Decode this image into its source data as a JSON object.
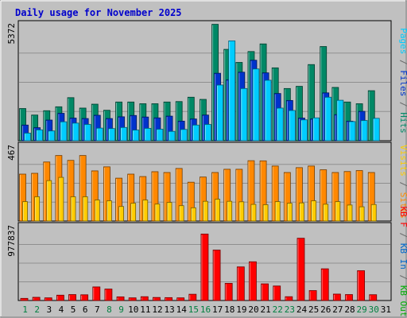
{
  "chart_data": {
    "type": "bar",
    "title": "Daily usage for November 2025",
    "categories": [
      "1",
      "2",
      "3",
      "4",
      "5",
      "6",
      "7",
      "8",
      "9",
      "10",
      "11",
      "12",
      "13",
      "14",
      "15",
      "16",
      "17",
      "18",
      "19",
      "20",
      "21",
      "22",
      "23",
      "24",
      "25",
      "26",
      "27",
      "28",
      "29",
      "30",
      "31"
    ],
    "weekend_days": [
      1,
      2,
      8,
      9,
      15,
      16,
      22,
      23,
      29,
      30
    ],
    "panels": [
      {
        "name": "hits-files-pages",
        "max_label": "5372",
        "ymax": 5372,
        "side_label": [
          {
            "text": "Pages",
            "color": "#00ccff"
          },
          {
            "text": " / ",
            "color": "#666666"
          },
          {
            "text": "Files",
            "color": "#0033cc"
          },
          {
            "text": " / ",
            "color": "#666666"
          },
          {
            "text": "Hits",
            "color": "#008866"
          }
        ],
        "series": [
          {
            "name": "Hits",
            "color": "#008866",
            "values": [
              1480,
              1180,
              1380,
              1560,
              1980,
              1500,
              1680,
              1400,
              1780,
              1780,
              1700,
              1700,
              1780,
              1800,
              2000,
              1900,
              5350,
              4200,
              3600,
              4100,
              4450,
              3350,
              2400,
              2500,
              3500,
              4330,
              2450,
              1780,
              1700,
              2300,
              0
            ]
          },
          {
            "name": "Files",
            "color": "#0033cc",
            "values": [
              720,
              600,
              950,
              1260,
              1040,
              1020,
              1170,
              1020,
              1100,
              1160,
              1090,
              1050,
              1130,
              900,
              1000,
              1180,
              3100,
              2800,
              3150,
              3700,
              3120,
              2170,
              1850,
              1040,
              1000,
              2200,
              1200,
              900,
              1350,
              0,
              0
            ]
          },
          {
            "name": "Pages",
            "color": "#00ccff",
            "values": [
              350,
              500,
              450,
              870,
              810,
              750,
              580,
              560,
              610,
              490,
              570,
              530,
              430,
              520,
              720,
              750,
              2560,
              4590,
              2400,
              3300,
              2780,
              1500,
              1390,
              960,
              1050,
              2000,
              1860,
              880,
              930,
              1030,
              0
            ]
          }
        ]
      },
      {
        "name": "visits-sites",
        "max_label": "467",
        "ymax": 467,
        "side_label": [
          {
            "text": "Visits",
            "color": "#ffcc00"
          },
          {
            "text": " / ",
            "color": "#666666"
          },
          {
            "text": "Sites",
            "color": "#ff8800"
          }
        ],
        "series": [
          {
            "name": "Sites",
            "color": "#ff8800",
            "values": [
              290,
              295,
              365,
              405,
              375,
              405,
              310,
              335,
              265,
              290,
              275,
              305,
              300,
              325,
              240,
              272,
              300,
              320,
              320,
              373,
              372,
              340,
              300,
              330,
              340,
              317,
              300,
              306,
              312,
              300,
              0
            ]
          },
          {
            "name": "Visits",
            "color": "#ffcc00",
            "values": [
              120,
              150,
              250,
              270,
              150,
              150,
              130,
              125,
              90,
              110,
              130,
              105,
              115,
              95,
              82,
              122,
              135,
              122,
              119,
              103,
              101,
              120,
              110,
              112,
              125,
              104,
              120,
              99,
              88,
              102,
              0
            ]
          }
        ]
      },
      {
        "name": "kb",
        "max_label": "977837",
        "ymax": 977837,
        "side_label": [
          {
            "text": "KB F",
            "color": "#ff0000"
          },
          {
            "text": " / ",
            "color": "#666666"
          },
          {
            "text": "KB In",
            "color": "#0066cc"
          },
          {
            "text": " / ",
            "color": "#666666"
          },
          {
            "text": "KB Out",
            "color": "#00aa00"
          }
        ],
        "series": [
          {
            "name": "KB F",
            "color": "#ff0000",
            "values": [
              28000,
              42000,
              35000,
              70000,
              78000,
              75000,
              178000,
              150000,
              48000,
              35000,
              50000,
              40000,
              38000,
              35000,
              82000,
              870000,
              660000,
              225000,
              440000,
              507000,
              218000,
              190000,
              50000,
              815000,
              130000,
              415000,
              84000,
              78000,
              390000,
              76000,
              0
            ]
          }
        ]
      }
    ]
  }
}
